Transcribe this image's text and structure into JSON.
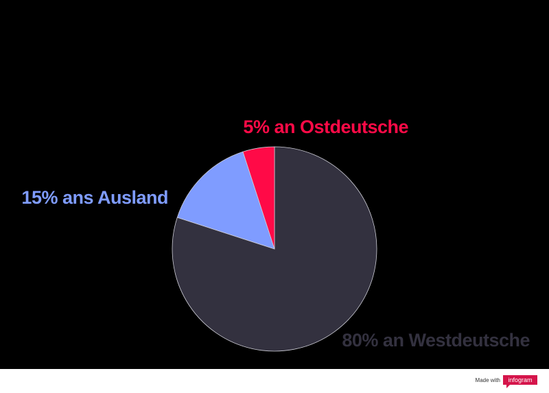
{
  "chart_data": {
    "type": "pie",
    "values": [
      80,
      15,
      5
    ],
    "value_labels": [
      "80% an Westdeutsche",
      "15% ans Ausland",
      "5% an Ostdeutsche"
    ],
    "colors": [
      "#33313f",
      "#7f9cff",
      "#ff0a47"
    ]
  },
  "footer": {
    "made_with": "Made with",
    "brand": "infogram"
  }
}
